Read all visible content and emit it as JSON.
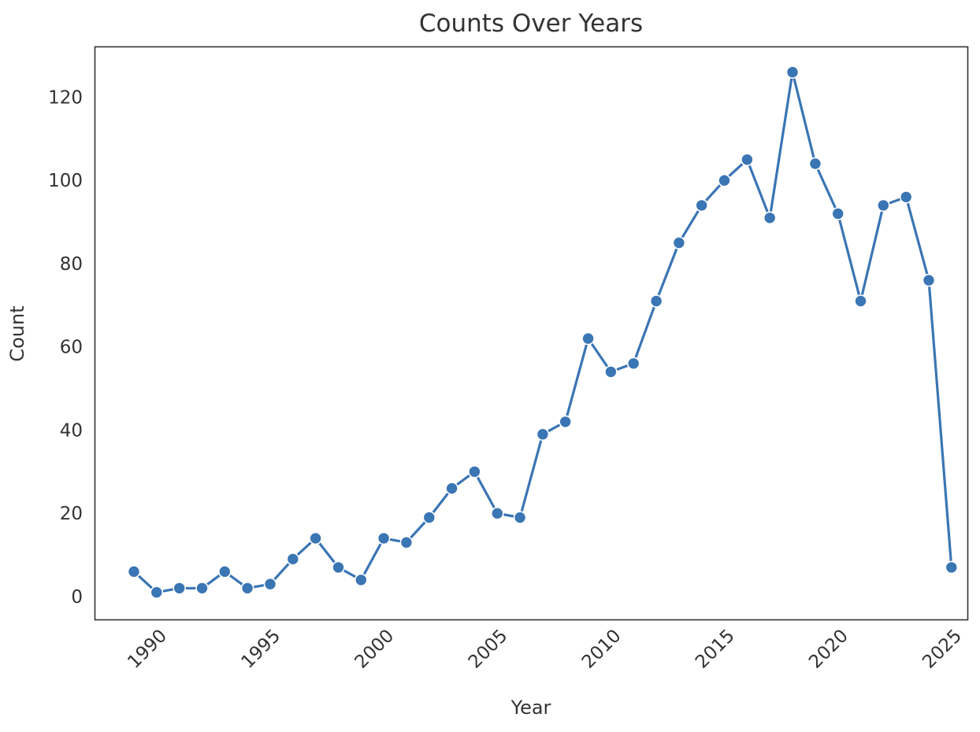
{
  "chart_data": {
    "type": "line",
    "title": "Counts Over Years",
    "xlabel": "Year",
    "ylabel": "Count",
    "xlim": [
      1987.3,
      2025.7
    ],
    "ylim": [
      -5.5,
      132
    ],
    "x_ticks": [
      1990,
      1995,
      2000,
      2005,
      2010,
      2015,
      2020,
      2025
    ],
    "y_ticks": [
      0,
      20,
      40,
      60,
      80,
      100,
      120
    ],
    "grid": false,
    "legend": "none",
    "series": [
      {
        "color": "#3a75b4",
        "marker": "circle",
        "x": [
          1989,
          1990,
          1991,
          1992,
          1993,
          1994,
          1995,
          1996,
          1997,
          1998,
          1999,
          2000,
          2001,
          2002,
          2003,
          2004,
          2005,
          2006,
          2007,
          2008,
          2009,
          2010,
          2011,
          2012,
          2013,
          2014,
          2015,
          2016,
          2017,
          2018,
          2019,
          2020,
          2021,
          2022,
          2023,
          2024,
          2025
        ],
        "y": [
          6,
          1,
          2,
          2,
          6,
          2,
          3,
          9,
          14,
          7,
          4,
          14,
          13,
          19,
          26,
          30,
          20,
          19,
          39,
          42,
          62,
          54,
          56,
          71,
          85,
          94,
          100,
          105,
          91,
          126,
          104,
          92,
          71,
          94,
          96,
          76,
          7
        ]
      }
    ]
  }
}
